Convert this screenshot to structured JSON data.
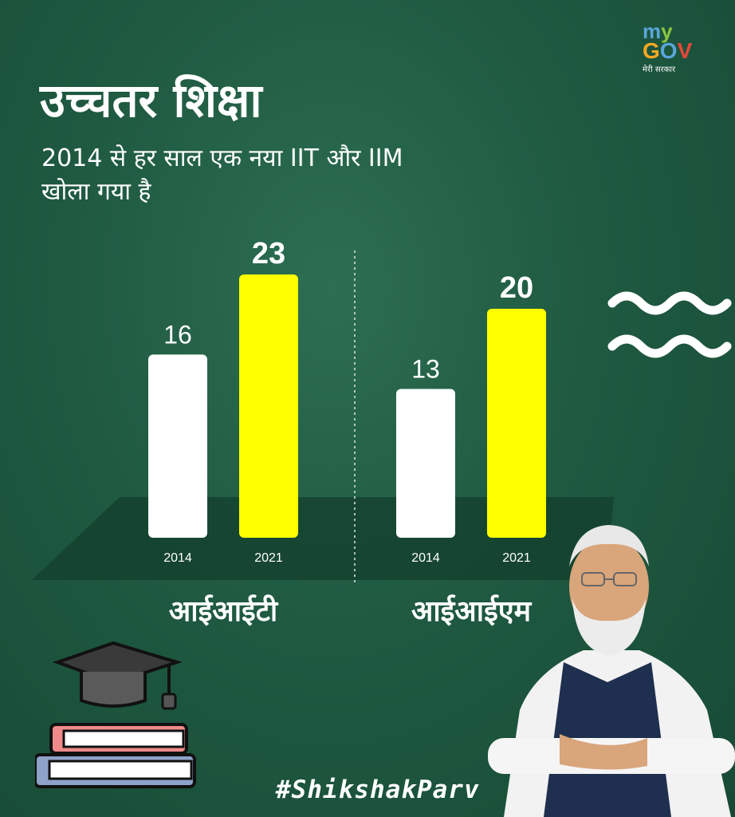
{
  "brand": {
    "logo_my": "my",
    "logo_gov": "GOV",
    "logo_tagline": "मेरी सरकार"
  },
  "header": {
    "title": "उच्चतर शिक्षा",
    "subtitle_line1": "2014 से हर साल एक नया IIT और IIM",
    "subtitle_line2": "खोला गया है"
  },
  "footer": {
    "hashtag": "#ShikshakParv"
  },
  "colors": {
    "background": "#1f5a41",
    "bar_2014": "#ffffff",
    "bar_2021": "#ffff00"
  },
  "icons": [
    "graduation-cap-icon",
    "books-stack-icon",
    "wave-lines-icon"
  ],
  "chart_data": [
    {
      "type": "bar",
      "title": "आईआईटी",
      "categories": [
        "2014",
        "2021"
      ],
      "values": [
        16,
        23
      ],
      "colors": [
        "#ffffff",
        "#ffff00"
      ],
      "ylim": [
        0,
        23
      ]
    },
    {
      "type": "bar",
      "title": "आईआईएम",
      "categories": [
        "2014",
        "2021"
      ],
      "values": [
        13,
        20
      ],
      "colors": [
        "#ffffff",
        "#ffff00"
      ],
      "ylim": [
        0,
        23
      ]
    }
  ]
}
